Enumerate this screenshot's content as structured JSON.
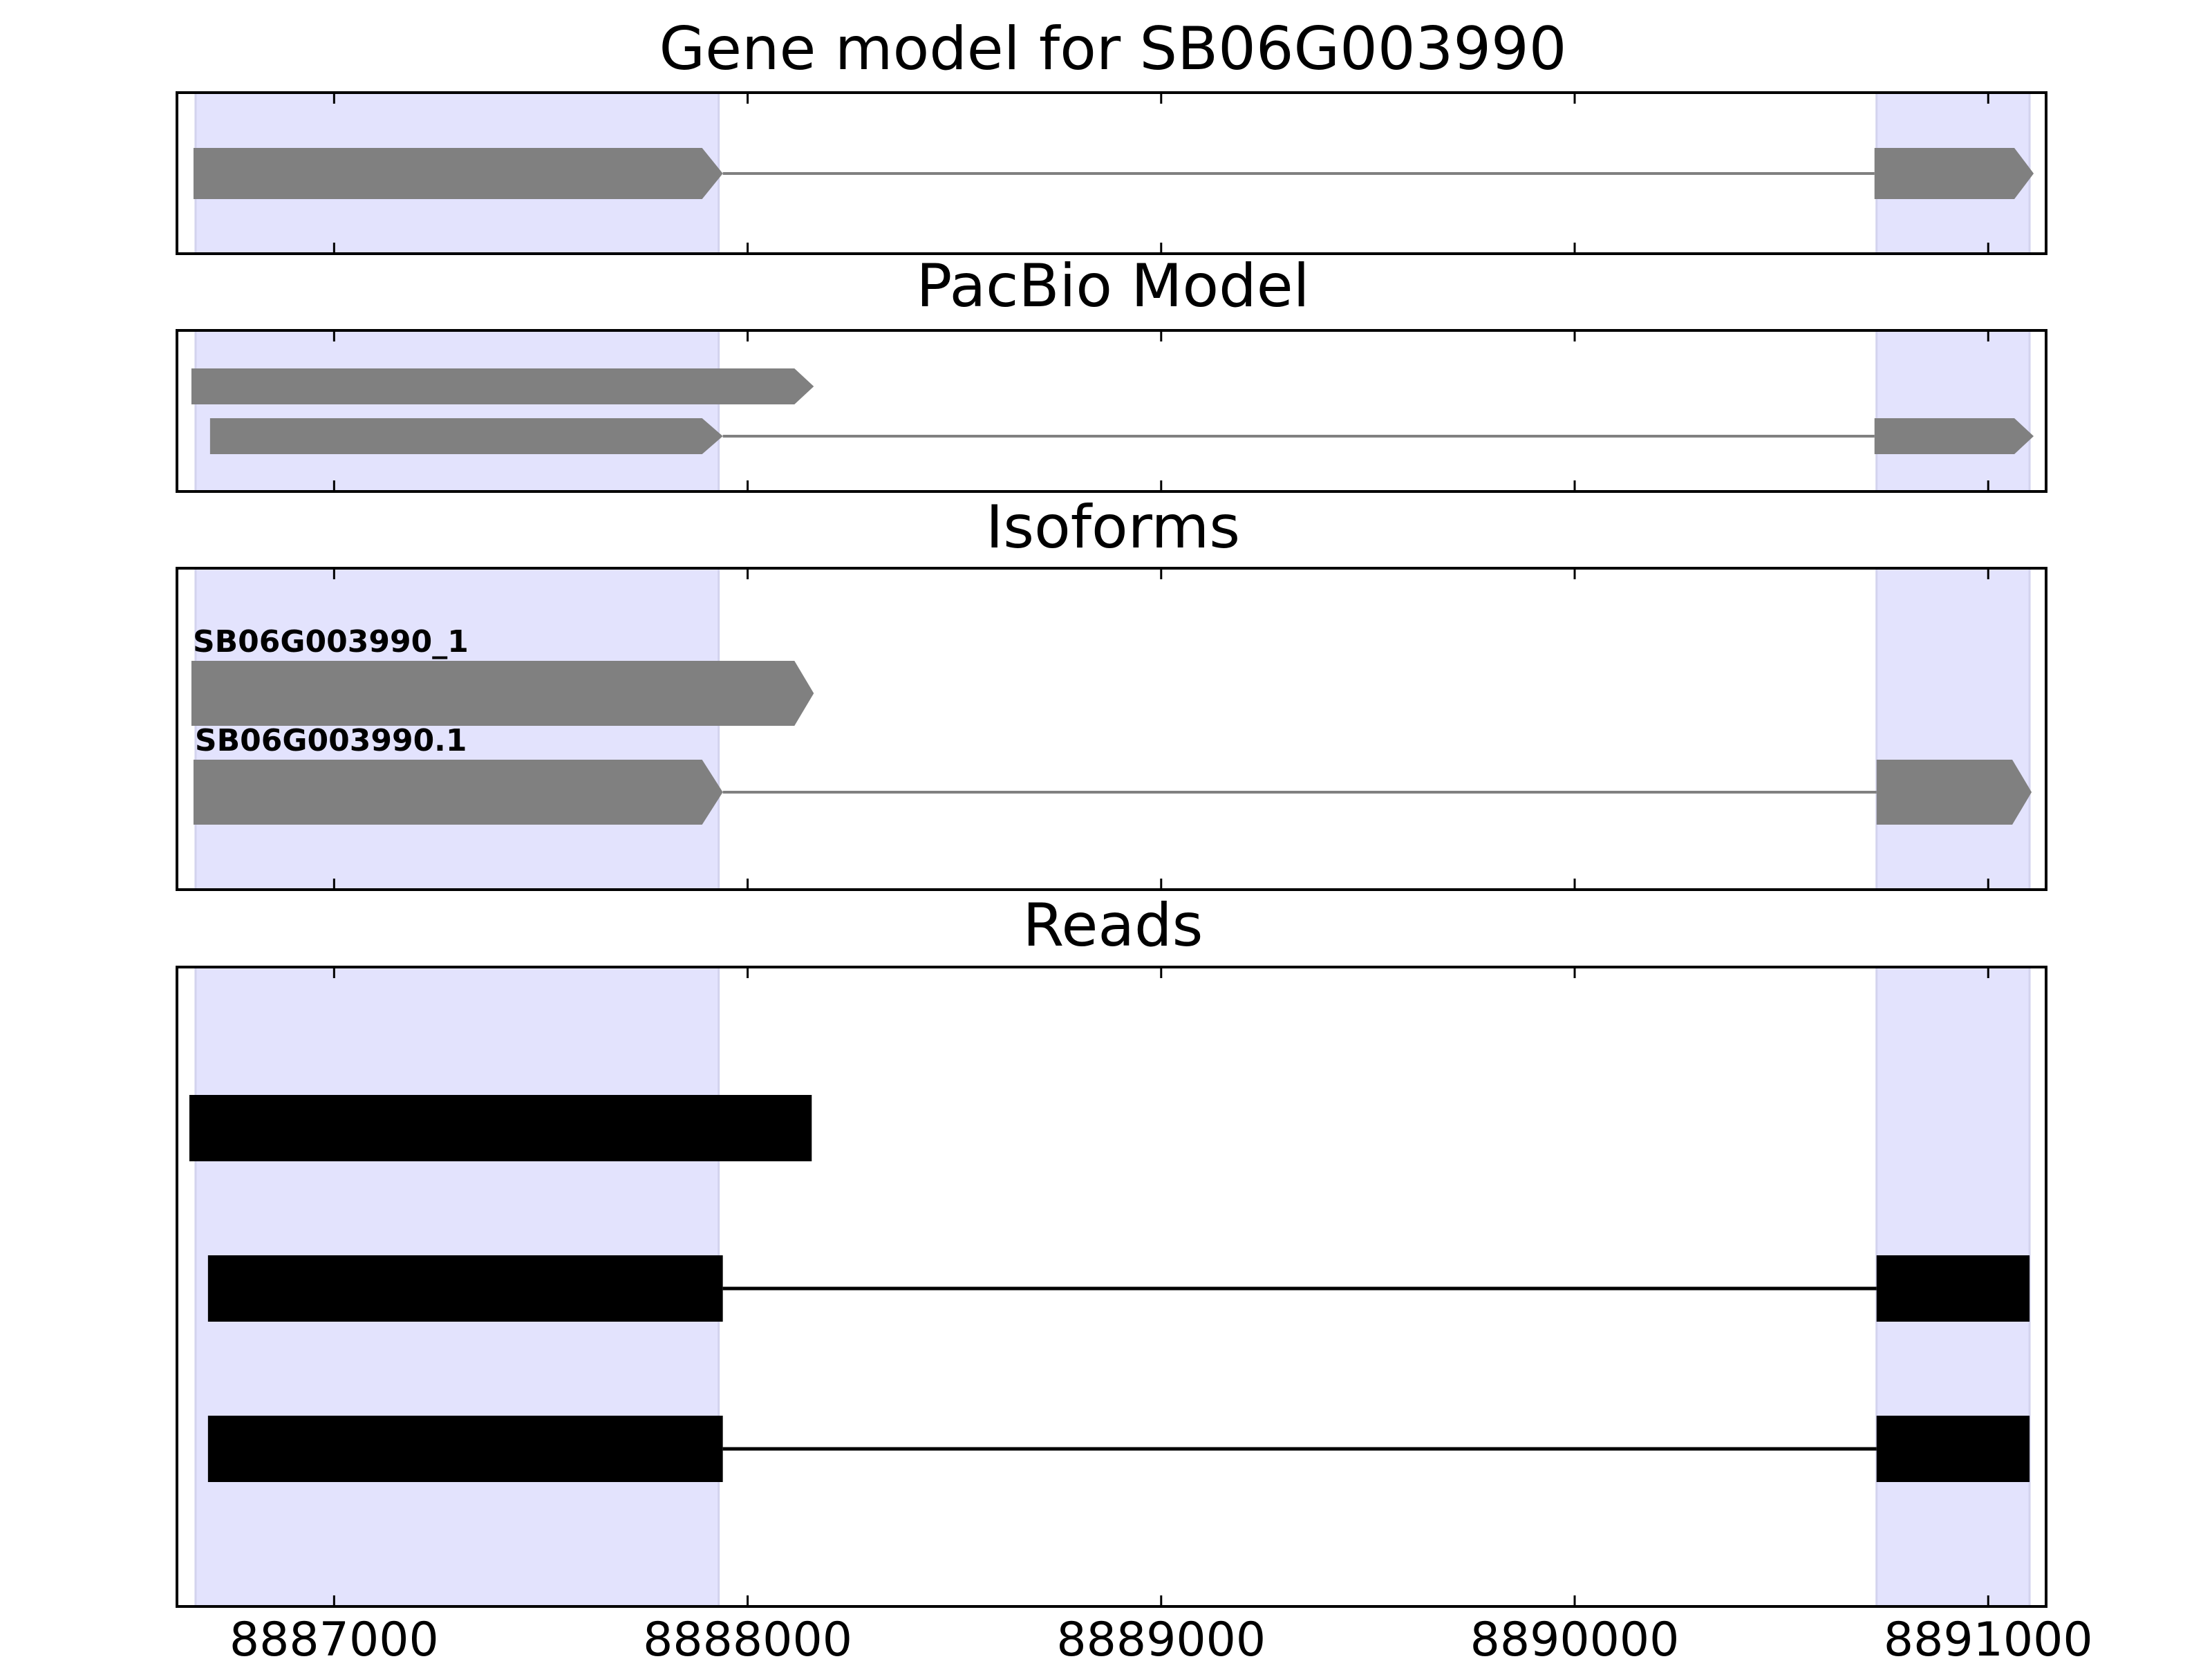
{
  "figure": {
    "title": "Gene model for SB06G003990"
  },
  "chart_data": {
    "type": "gene_track",
    "xlim": [
      8886620,
      8891140
    ],
    "x_ticks": [
      8887000,
      8888000,
      8889000,
      8890000,
      8891000
    ],
    "tick_labels": [
      "8887000",
      "8888000",
      "8889000",
      "8890000",
      "8891000"
    ],
    "exon_highlights": [
      {
        "start": 8886665,
        "end": 8887930
      },
      {
        "start": 8890730,
        "end": 8891100
      }
    ],
    "colors": {
      "highlight": "#e3e3fd",
      "highlight_edge": "#d3d3ee",
      "model": "#808080",
      "read": "#000000"
    },
    "panels": [
      {
        "id": "gene-model",
        "title": "Gene model for SB06G003990",
        "tracks": [
          {
            "label": "",
            "exons": [
              [
                8886660,
                8887940
              ],
              [
                8890725,
                8891110
              ]
            ],
            "strand": "+"
          }
        ]
      },
      {
        "id": "pacbio-model",
        "title": "PacBio Model",
        "tracks": [
          {
            "label": "",
            "exons": [
              [
                8886655,
                8888160
              ]
            ],
            "strand": "+"
          },
          {
            "label": "",
            "exons": [
              [
                8886700,
                8887940
              ],
              [
                8890725,
                8891110
              ]
            ],
            "strand": "+"
          }
        ]
      },
      {
        "id": "isoforms",
        "title": "Isoforms",
        "tracks": [
          {
            "label": "SB06G003990_1",
            "exons": [
              [
                8886655,
                8888160
              ]
            ],
            "strand": "+"
          },
          {
            "label": "SB06G003990.1",
            "exons": [
              [
                8886660,
                8887940
              ],
              [
                8890730,
                8891105
              ]
            ],
            "strand": "+"
          }
        ]
      },
      {
        "id": "reads",
        "title": "Reads",
        "tracks": [
          {
            "label": "",
            "exons": [
              [
                8886650,
                8888155
              ]
            ],
            "strand": ""
          },
          {
            "label": "",
            "exons": [
              [
                8886695,
                8887940
              ],
              [
                8890730,
                8891100
              ]
            ],
            "strand": ""
          },
          {
            "label": "",
            "exons": [
              [
                8886695,
                8887940
              ],
              [
                8890730,
                8891100
              ]
            ],
            "strand": ""
          }
        ]
      }
    ]
  }
}
